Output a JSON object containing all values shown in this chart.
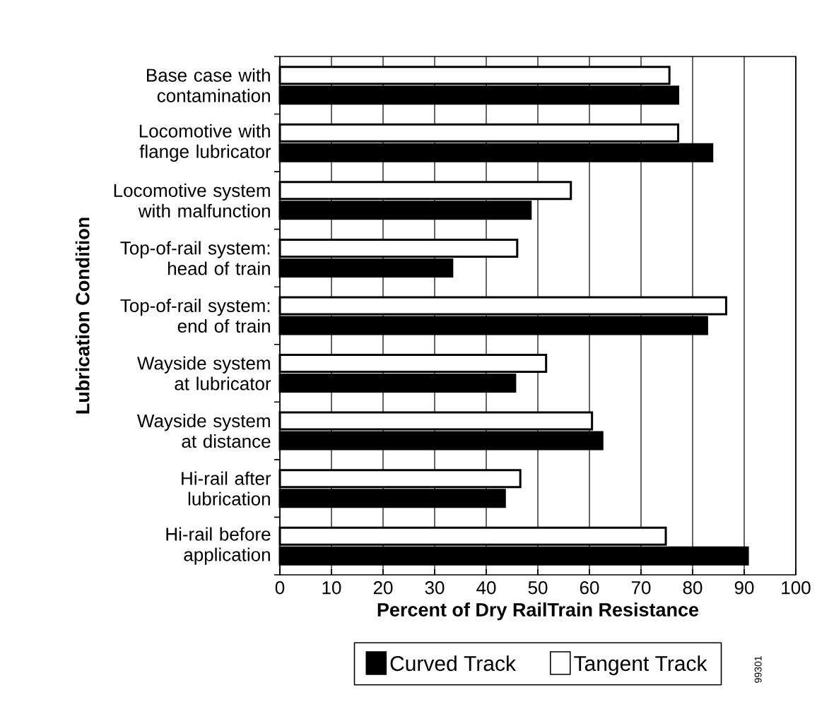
{
  "chart_data": {
    "type": "bar",
    "orientation": "horizontal",
    "xlabel": "Percent of Dry RailTrain Resistance",
    "ylabel": "Lubrication Condition",
    "categories": [
      "Base case with contamination",
      "Locomotive with flange lubricator",
      "Locomotive system with malfunction",
      "Top-of-rail system: head of train",
      "Top-of-rail system: end of train",
      "Wayside system at lubricator",
      "Wayside system at distance",
      "Hi-rail after lubrication",
      "Hi-rail before application"
    ],
    "series": [
      {
        "name": "Curved Track",
        "color": "#000000",
        "values": [
          77.2,
          83.8,
          48.6,
          33.4,
          82.8,
          45.6,
          62.5,
          43.6,
          90.7
        ]
      },
      {
        "name": "Tangent Track",
        "color": "#ffffff",
        "values": [
          75.5,
          77.2,
          56.4,
          46.0,
          86.5,
          51.6,
          60.5,
          46.6,
          74.8
        ]
      }
    ],
    "xlim": [
      0,
      100
    ],
    "xticks": [
      0,
      10,
      20,
      30,
      40,
      50,
      60,
      70,
      80,
      90,
      100
    ],
    "grid": "x",
    "legend": "bottom",
    "annotations": [
      "99301"
    ]
  }
}
